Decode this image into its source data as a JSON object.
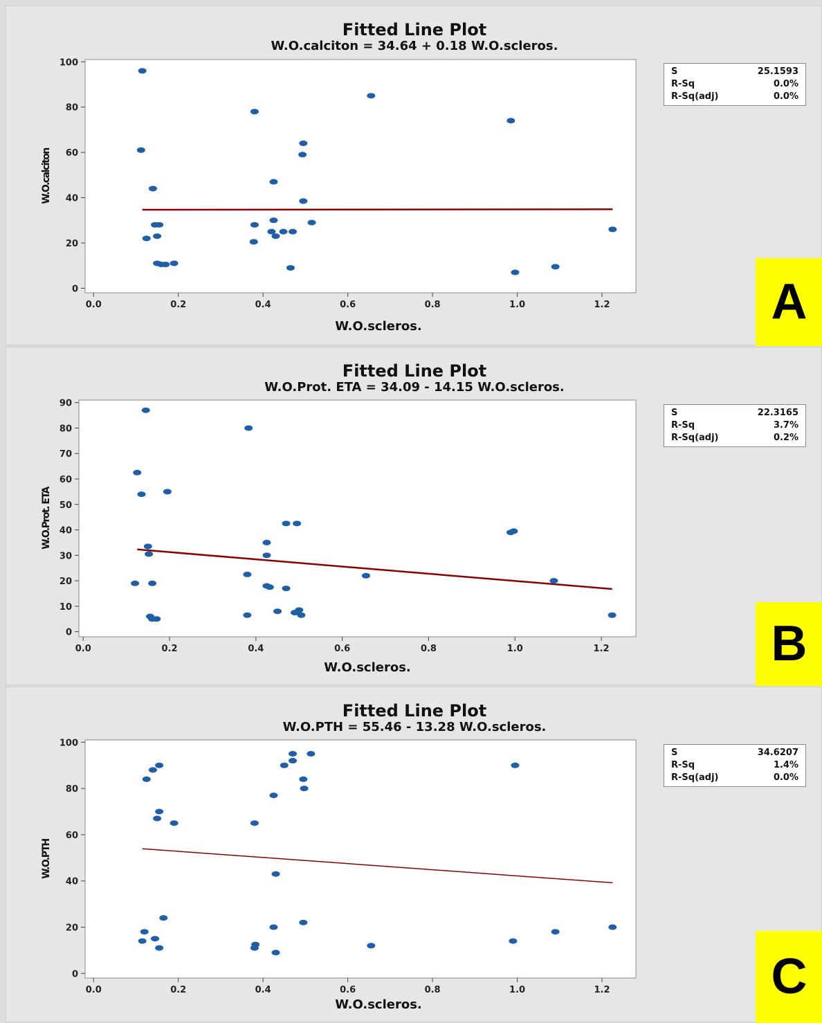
{
  "chart_data": [
    {
      "type": "scatter",
      "panel_label": "A",
      "title": "Fitted Line Plot",
      "subtitle": "W.O.calciton = 34.64 + 0.18 W.O.scleros.",
      "xlabel": "W.O.scleros.",
      "ylabel": "W.O.calciton",
      "xlim": [
        -0.02,
        1.28
      ],
      "ylim": [
        -2,
        101
      ],
      "xticks": [
        "0.0",
        "0.2",
        "0.4",
        "0.6",
        "0.8",
        "1.0",
        "1.2"
      ],
      "yticks": [
        "0",
        "20",
        "40",
        "60",
        "80",
        "100"
      ],
      "fit": {
        "intercept": 34.64,
        "slope": 0.18,
        "x_range": [
          0.115,
          1.225
        ]
      },
      "stats": [
        {
          "label": "S",
          "value": "25.1593"
        },
        {
          "label": "R-Sq",
          "value": "0.0%"
        },
        {
          "label": "R-Sq(adj)",
          "value": "0.0%"
        }
      ],
      "points": [
        [
          0.115,
          96
        ],
        [
          0.112,
          61
        ],
        [
          0.14,
          44
        ],
        [
          0.125,
          22
        ],
        [
          0.145,
          28
        ],
        [
          0.155,
          28
        ],
        [
          0.15,
          23
        ],
        [
          0.15,
          11
        ],
        [
          0.16,
          10.5
        ],
        [
          0.17,
          10.5
        ],
        [
          0.19,
          11
        ],
        [
          0.38,
          78
        ],
        [
          0.38,
          28
        ],
        [
          0.378,
          20.5
        ],
        [
          0.425,
          47
        ],
        [
          0.425,
          30
        ],
        [
          0.42,
          25
        ],
        [
          0.43,
          23
        ],
        [
          0.448,
          25
        ],
        [
          0.47,
          25
        ],
        [
          0.465,
          9
        ],
        [
          0.495,
          64
        ],
        [
          0.493,
          59
        ],
        [
          0.495,
          38.5
        ],
        [
          0.515,
          29
        ],
        [
          0.655,
          85
        ],
        [
          0.985,
          74
        ],
        [
          0.995,
          7
        ],
        [
          1.09,
          9.5
        ],
        [
          1.225,
          26
        ]
      ]
    },
    {
      "type": "scatter",
      "panel_label": "B",
      "title": "Fitted Line Plot",
      "subtitle": "W.O.Prot. ETA = 34.09 - 14.15 W.O.scleros.",
      "xlabel": "W.O.scleros.",
      "ylabel": "W.O.Prot. ETA",
      "xlim": [
        -0.01,
        1.28
      ],
      "ylim": [
        -2,
        91
      ],
      "xticks": [
        "0.0",
        "0.2",
        "0.4",
        "0.6",
        "0.8",
        "1.0",
        "1.2"
      ],
      "yticks": [
        "0",
        "10",
        "20",
        "30",
        "40",
        "50",
        "60",
        "70",
        "80",
        "90"
      ],
      "fit": {
        "intercept": 34.09,
        "slope": -14.15,
        "x_range": [
          0.125,
          1.225
        ]
      },
      "stats": [
        {
          "label": "S",
          "value": "22.3165"
        },
        {
          "label": "R-Sq",
          "value": "3.7%"
        },
        {
          "label": "R-Sq(adj)",
          "value": "0.2%"
        }
      ],
      "points": [
        [
          0.145,
          87
        ],
        [
          0.125,
          62.5
        ],
        [
          0.135,
          54
        ],
        [
          0.195,
          55
        ],
        [
          0.15,
          33.5
        ],
        [
          0.152,
          30.5
        ],
        [
          0.16,
          19
        ],
        [
          0.12,
          19
        ],
        [
          0.155,
          6
        ],
        [
          0.16,
          5
        ],
        [
          0.17,
          5
        ],
        [
          0.383,
          80
        ],
        [
          0.38,
          22.5
        ],
        [
          0.38,
          6.5
        ],
        [
          0.425,
          35
        ],
        [
          0.425,
          30
        ],
        [
          0.425,
          18
        ],
        [
          0.432,
          17.5
        ],
        [
          0.45,
          8
        ],
        [
          0.47,
          42.5
        ],
        [
          0.47,
          17
        ],
        [
          0.495,
          42.5
        ],
        [
          0.49,
          7.5
        ],
        [
          0.5,
          8.5
        ],
        [
          0.505,
          6.5
        ],
        [
          0.655,
          22
        ],
        [
          0.99,
          39
        ],
        [
          0.997,
          39.5
        ],
        [
          1.09,
          20
        ],
        [
          1.225,
          6.5
        ]
      ]
    },
    {
      "type": "scatter",
      "panel_label": "C",
      "title": "Fitted Line Plot",
      "subtitle": "W.O.PTH = 55.46 - 13.28 W.O.scleros.",
      "xlabel": "W.O.scleros.",
      "ylabel": "W.O.PTH",
      "xlim": [
        -0.02,
        1.28
      ],
      "ylim": [
        -2,
        101
      ],
      "xticks": [
        "0.0",
        "0.2",
        "0.4",
        "0.6",
        "0.8",
        "1.0",
        "1.2"
      ],
      "yticks": [
        "0",
        "20",
        "40",
        "60",
        "80",
        "100"
      ],
      "fit": {
        "intercept": 55.46,
        "slope": -13.28,
        "x_range": [
          0.115,
          1.225
        ]
      },
      "stats": [
        {
          "label": "S",
          "value": "34.6207"
        },
        {
          "label": "R-Sq",
          "value": "1.4%"
        },
        {
          "label": "R-Sq(adj)",
          "value": "0.0%"
        }
      ],
      "points": [
        [
          0.125,
          84
        ],
        [
          0.14,
          88
        ],
        [
          0.155,
          90
        ],
        [
          0.155,
          70
        ],
        [
          0.15,
          67
        ],
        [
          0.19,
          65
        ],
        [
          0.165,
          24
        ],
        [
          0.12,
          18
        ],
        [
          0.115,
          14
        ],
        [
          0.145,
          15
        ],
        [
          0.155,
          11
        ],
        [
          0.38,
          65
        ],
        [
          0.38,
          11
        ],
        [
          0.382,
          12.5
        ],
        [
          0.425,
          77
        ],
        [
          0.425,
          20
        ],
        [
          0.43,
          43
        ],
        [
          0.43,
          9
        ],
        [
          0.45,
          90
        ],
        [
          0.47,
          92
        ],
        [
          0.47,
          95
        ],
        [
          0.495,
          84
        ],
        [
          0.497,
          80
        ],
        [
          0.513,
          95
        ],
        [
          0.495,
          22
        ],
        [
          0.655,
          12
        ],
        [
          0.99,
          14
        ],
        [
          0.995,
          90
        ],
        [
          1.09,
          18
        ],
        [
          1.225,
          20
        ]
      ]
    }
  ]
}
